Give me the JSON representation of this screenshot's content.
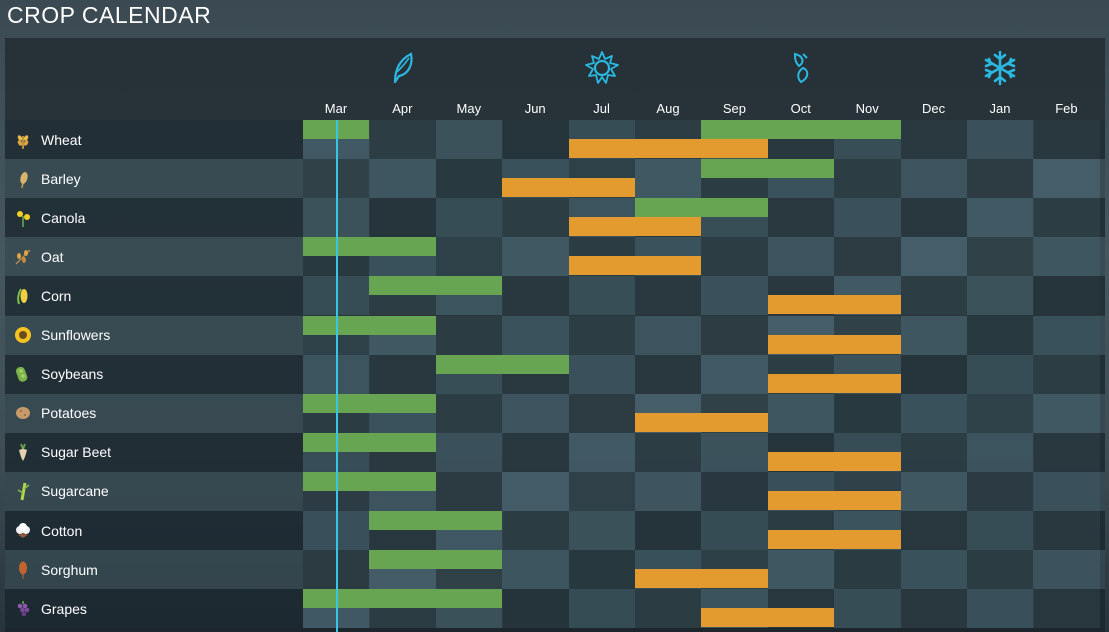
{
  "title": "CROP CALENDAR",
  "colors": {
    "planting": "#67a553",
    "harvest": "#e39a2f",
    "season_icon": "#2bb8e0",
    "current_day_line": "#38c6e6"
  },
  "seasons": [
    {
      "name": "spring",
      "icon": "leaf-icon"
    },
    {
      "name": "summer",
      "icon": "sun-icon"
    },
    {
      "name": "autumn",
      "icon": "falling-leaves-icon"
    },
    {
      "name": "winter",
      "icon": "snowflake-icon"
    }
  ],
  "months": [
    "Mar",
    "Apr",
    "May",
    "Jun",
    "Jul",
    "Aug",
    "Sep",
    "Oct",
    "Nov",
    "Dec",
    "Jan",
    "Feb"
  ],
  "current_position_month": 0.5,
  "crops": [
    {
      "name": "Wheat",
      "icon": "wheat-icon",
      "planting": [
        [
          0,
          1
        ],
        [
          6,
          9
        ]
      ],
      "harvest": [
        [
          4,
          7
        ]
      ]
    },
    {
      "name": "Barley",
      "icon": "barley-icon",
      "planting": [
        [
          6,
          8
        ]
      ],
      "harvest": [
        [
          3,
          5
        ]
      ]
    },
    {
      "name": "Canola",
      "icon": "canola-icon",
      "planting": [
        [
          5,
          7
        ]
      ],
      "harvest": [
        [
          4,
          6
        ]
      ]
    },
    {
      "name": "Oat",
      "icon": "oat-icon",
      "planting": [
        [
          0,
          2
        ]
      ],
      "harvest": [
        [
          4,
          6
        ]
      ]
    },
    {
      "name": "Corn",
      "icon": "corn-icon",
      "planting": [
        [
          1,
          3
        ]
      ],
      "harvest": [
        [
          7,
          9
        ]
      ]
    },
    {
      "name": "Sunflowers",
      "icon": "sunflower-icon",
      "planting": [
        [
          0,
          2
        ]
      ],
      "harvest": [
        [
          7,
          9
        ]
      ]
    },
    {
      "name": "Soybeans",
      "icon": "soybean-icon",
      "planting": [
        [
          2,
          4
        ]
      ],
      "harvest": [
        [
          7,
          9
        ]
      ]
    },
    {
      "name": "Potatoes",
      "icon": "potato-icon",
      "planting": [
        [
          0,
          2
        ]
      ],
      "harvest": [
        [
          5,
          7
        ]
      ]
    },
    {
      "name": "Sugar Beet",
      "icon": "sugar-beet-icon",
      "planting": [
        [
          0,
          2
        ]
      ],
      "harvest": [
        [
          7,
          9
        ]
      ]
    },
    {
      "name": "Sugarcane",
      "icon": "sugarcane-icon",
      "planting": [
        [
          0,
          2
        ]
      ],
      "harvest": [
        [
          7,
          9
        ]
      ]
    },
    {
      "name": "Cotton",
      "icon": "cotton-icon",
      "planting": [
        [
          1,
          3
        ]
      ],
      "harvest": [
        [
          7,
          9
        ]
      ]
    },
    {
      "name": "Sorghum",
      "icon": "sorghum-icon",
      "planting": [
        [
          1,
          3
        ]
      ],
      "harvest": [
        [
          5,
          7
        ]
      ]
    },
    {
      "name": "Grapes",
      "icon": "grapes-icon",
      "planting": [
        [
          0,
          3
        ]
      ],
      "harvest": [
        [
          6,
          8
        ]
      ]
    }
  ]
}
